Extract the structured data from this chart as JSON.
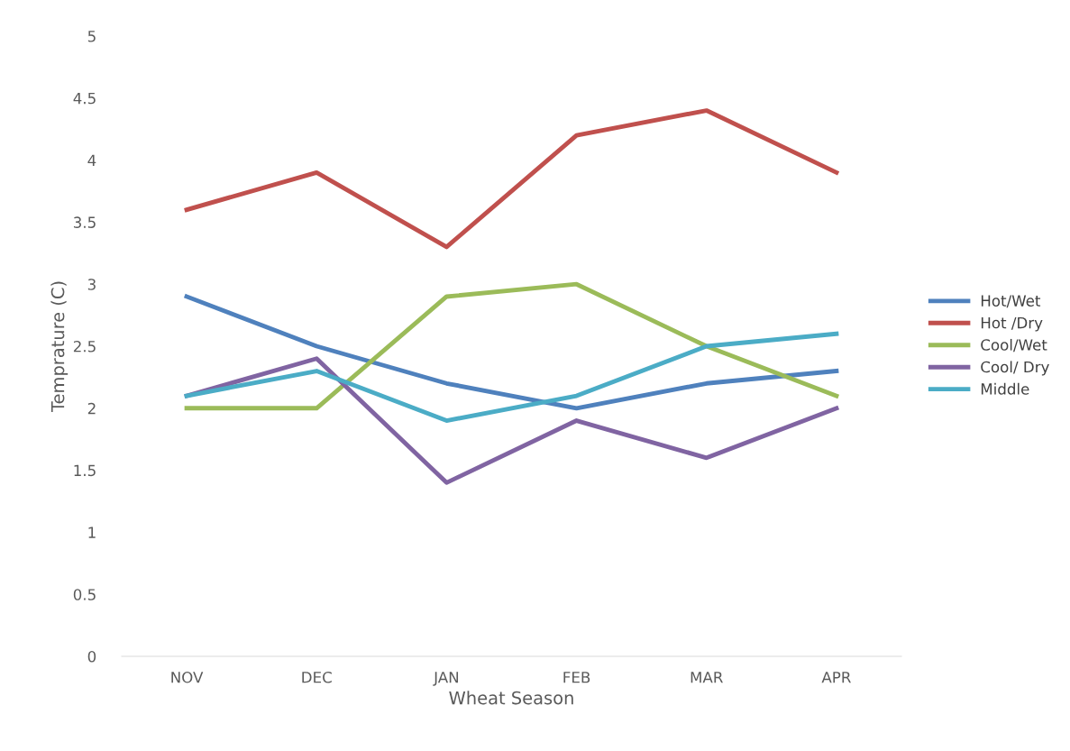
{
  "chart_data": {
    "type": "line",
    "xlabel": "Wheat Season",
    "ylabel": "Temprature (C)",
    "categories": [
      "NOV",
      "DEC",
      "JAN",
      "FEB",
      "MAR",
      "APR"
    ],
    "series": [
      {
        "name": "Hot/Wet",
        "color": "#4f81bd",
        "values": [
          2.9,
          2.5,
          2.2,
          2.0,
          2.2,
          2.3
        ]
      },
      {
        "name": "Hot /Dry",
        "color": "#c0504d",
        "values": [
          3.6,
          3.9,
          3.3,
          4.2,
          4.4,
          3.9
        ]
      },
      {
        "name": "Cool/Wet",
        "color": "#9bbb59",
        "values": [
          2.0,
          2.0,
          2.9,
          3.0,
          2.5,
          2.1
        ]
      },
      {
        "name": "Cool/ Dry",
        "color": "#8064a2",
        "values": [
          2.1,
          2.4,
          1.4,
          1.9,
          1.6,
          2.0
        ]
      },
      {
        "name": "Middle",
        "color": "#4bacc6",
        "values": [
          2.1,
          2.3,
          1.9,
          2.1,
          2.5,
          2.6
        ]
      }
    ],
    "ylim": [
      0,
      5
    ],
    "yticks": [
      0,
      0.5,
      1,
      1.5,
      2,
      2.5,
      3,
      3.5,
      4,
      4.5,
      5
    ],
    "grid": false,
    "legend": "right",
    "marker": "none",
    "line_style": "solid"
  }
}
